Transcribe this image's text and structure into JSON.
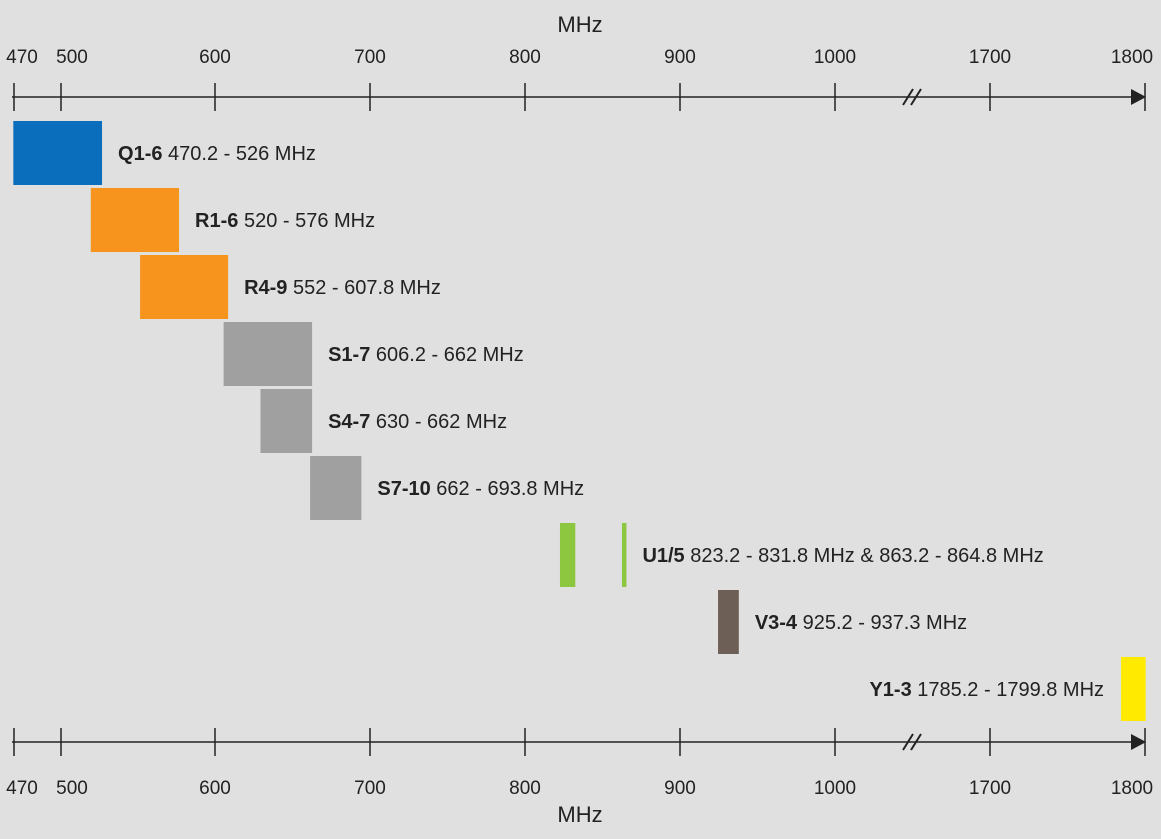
{
  "chart_data": {
    "type": "range-bar",
    "xlabel": "MHz",
    "axis": {
      "ticks": [
        470,
        500,
        600,
        700,
        800,
        900,
        1000,
        1700,
        1800
      ],
      "break_between": [
        1000,
        1700
      ]
    },
    "colors": {
      "background": "#e0e0e0",
      "blue": "#0a6ebd",
      "orange": "#f7941d",
      "gray": "#a0a0a0",
      "green": "#8dc63f",
      "brown": "#6d5f55",
      "yellow": "#ffea00"
    },
    "bands": [
      {
        "name": "Q1-6",
        "range_text": "470.2 - 526 MHz",
        "segments": [
          [
            470.2,
            526
          ]
        ],
        "color": "#0a6ebd"
      },
      {
        "name": "R1-6",
        "range_text": "520 - 576 MHz",
        "segments": [
          [
            520,
            576
          ]
        ],
        "color": "#f7941d"
      },
      {
        "name": "R4-9",
        "range_text": "552 - 607.8 MHz",
        "segments": [
          [
            552,
            607.8
          ]
        ],
        "color": "#f7941d"
      },
      {
        "name": "S1-7",
        "range_text": "606.2 - 662 MHz",
        "segments": [
          [
            606.2,
            662
          ]
        ],
        "color": "#a0a0a0"
      },
      {
        "name": "S4-7",
        "range_text": "630 - 662 MHz",
        "segments": [
          [
            630,
            662
          ]
        ],
        "color": "#a0a0a0"
      },
      {
        "name": "S7-10",
        "range_text": "662 - 693.8 MHz",
        "segments": [
          [
            662,
            693.8
          ]
        ],
        "color": "#a0a0a0"
      },
      {
        "name": "U1/5",
        "range_text": "823.2 - 831.8 MHz & 863.2 - 864.8 MHz",
        "segments": [
          [
            823.2,
            831.8
          ],
          [
            863.2,
            864.8
          ]
        ],
        "color": "#8dc63f"
      },
      {
        "name": "V3-4",
        "range_text": "925.2 - 937.3 MHz",
        "segments": [
          [
            925.2,
            937.3
          ]
        ],
        "color": "#6d5f55"
      },
      {
        "name": "Y1-3",
        "range_text": "1785.2 - 1799.8 MHz",
        "segments": [
          [
            1785.2,
            1799.8
          ]
        ],
        "color": "#ffea00"
      }
    ]
  }
}
